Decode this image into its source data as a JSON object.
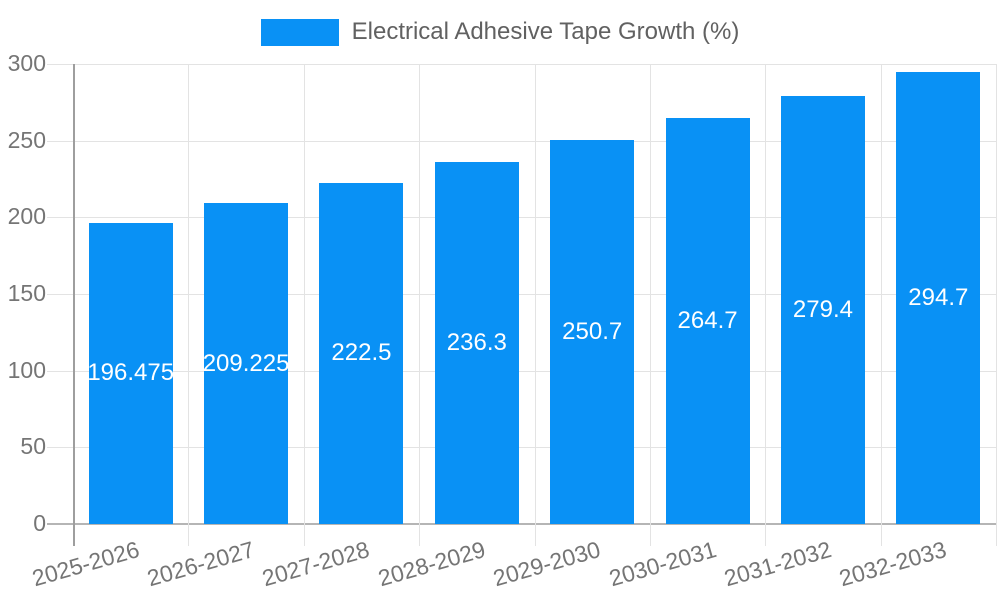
{
  "legend": {
    "label": "Electrical Adhesive Tape Growth (%)"
  },
  "colors": {
    "bar": "#0991f5",
    "grid": "#e3e3e3",
    "y_axis_line": "#9e9e9e",
    "baseline": "#b5b5b5",
    "tick_text": "#757575",
    "legend_text": "#616161",
    "bar_label_text": "#ffffff",
    "background": "#ffffff"
  },
  "chart_data": {
    "type": "bar",
    "title": "Electrical Adhesive Tape Growth (%)",
    "xlabel": "",
    "ylabel": "",
    "categories": [
      "2025-2026",
      "2026-2027",
      "2027-2028",
      "2028-2029",
      "2029-2030",
      "2030-2031",
      "2031-2032",
      "2032-2033"
    ],
    "values": [
      196.475,
      209.225,
      222.5,
      236.3,
      250.7,
      264.7,
      279.4,
      294.7
    ],
    "bar_labels": [
      "196.475",
      "209.225",
      "222.5",
      "236.3",
      "250.7",
      "264.7",
      "279.4",
      "294.7"
    ],
    "bar_label_position": "inside-center",
    "ylim": [
      0,
      300
    ],
    "yticks": [
      0,
      50,
      100,
      150,
      200,
      250,
      300
    ],
    "grid": "both",
    "x_label_rotation_deg": -16,
    "legend_position": "top-center"
  }
}
